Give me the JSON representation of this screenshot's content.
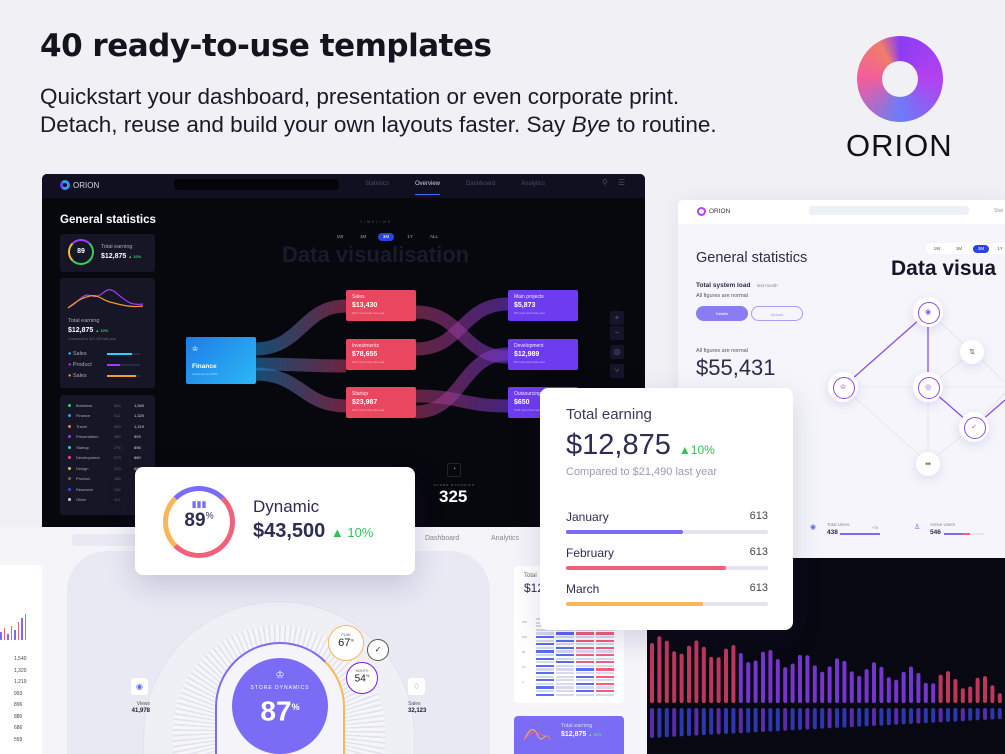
{
  "headline": {
    "title": "40 ready-to-use templates",
    "line1": "Quickstart your dashboard, presentation or even corporate print.",
    "line2_pre": "Detach, reuse and build your own layouts faster. Say ",
    "line2_em": "Bye",
    "line2_post": " to routine."
  },
  "brand": {
    "name": "ORION"
  },
  "dark_dashboard": {
    "logo": "ORION",
    "tabs": [
      "Statistics",
      "Overview",
      "Dashboard",
      "Analytics"
    ],
    "active_tab": "Overview",
    "heading": "General statistics",
    "gauge_card": {
      "percent": "89",
      "pct_sign": "%",
      "label": "Total earning",
      "value": "$12,875",
      "delta": "▲ 10%"
    },
    "earning_card": {
      "label": "Total earning",
      "value": "$12,875",
      "delta": "▲ 10%",
      "compare": "Compared to $21,490 last year",
      "legend": [
        "Sales",
        "Product",
        "Sales"
      ]
    },
    "table": [
      {
        "name": "Business",
        "a": "324",
        "b": "1,540",
        "color": "#2fd35a"
      },
      {
        "name": "Finance",
        "a": "311",
        "b": "1,320",
        "color": "#2d9cf5"
      },
      {
        "name": "Travel",
        "a": "300",
        "b": "1,219",
        "color": "#f57c2d"
      },
      {
        "name": "Presentation",
        "a": "289",
        "b": "993",
        "color": "#8b3df5"
      },
      {
        "name": "Startup",
        "a": "276",
        "b": "896",
        "color": "#2fd3a0"
      },
      {
        "name": "Development",
        "a": "273",
        "b": "880",
        "color": "#f03da0"
      },
      {
        "name": "Design",
        "a": "223",
        "b": "686",
        "color": "#d3c32f"
      },
      {
        "name": "Product",
        "a": "185",
        "b": "",
        "color": "#666"
      },
      {
        "name": "Research",
        "a": "132",
        "b": "",
        "color": "#2d4bf5"
      },
      {
        "name": "Other",
        "a": "107",
        "b": "",
        "color": "#ccc"
      }
    ],
    "timeline_label": "TIMELINE",
    "periods": [
      "1W",
      "1M",
      "3M",
      "1Y",
      "ALL"
    ],
    "active_period": "3M",
    "big_title": "Data visualisation",
    "source": {
      "name": "Finance",
      "desc": "Increased by 200%"
    },
    "middle": [
      {
        "name": "Sales",
        "value": "$13,430",
        "desc": "20% more than last year"
      },
      {
        "name": "Investments",
        "value": "$78,655",
        "desc": "10% more than last year"
      },
      {
        "name": "Startup",
        "value": "$23,987",
        "desc": "10% more than last year"
      }
    ],
    "right": [
      {
        "name": "Main projects",
        "value": "$5,873",
        "desc": "2% more than last year"
      },
      {
        "name": "Development",
        "value": "$12,989",
        "desc": "5% more than last year"
      },
      {
        "name": "Outsourcing",
        "value": "$650",
        "desc": "12% more than last year"
      }
    ],
    "store": {
      "label": "STORE DYNAMICS",
      "value": "325"
    }
  },
  "light_dashboard": {
    "logo": "ORION",
    "tab_partial": "Stat",
    "heading": "General statistics",
    "load_label": "Total system load",
    "load_period": "last month",
    "load_note": "All figures are normal",
    "details_btn": "Details",
    "upload_btn": "Upload",
    "amount_note": "All figures are normal",
    "amount": "$55,431",
    "periods": [
      "1W",
      "1M",
      "3M",
      "1Y"
    ],
    "active_period": "3M",
    "big_title": "Data visua",
    "total_users": {
      "label": "Total Users",
      "value": "438",
      "delta": "+76"
    },
    "active_users": {
      "label": "Active Users",
      "value": "546"
    }
  },
  "bottom_dashboard": {
    "tabs": [
      "Dashboard",
      "Analytics"
    ],
    "numbers": [
      "1,540",
      "1,320",
      "1,219",
      "993",
      "896",
      "880",
      "686",
      "559"
    ],
    "store": {
      "label": "STORE DYNAMICS",
      "value": "87",
      "pct": "%"
    },
    "plan": {
      "label": "PLAN",
      "value": "67",
      "pct": "%"
    },
    "month": {
      "label": "MONTH",
      "value": "54",
      "pct": "%"
    },
    "views": {
      "label": "Views",
      "value": "41,978"
    },
    "sales": {
      "label": "Sales",
      "value": "32,123"
    },
    "side_total": {
      "label": "Total",
      "value": "$12"
    },
    "heat_ticks": [
      "150",
      "100",
      "50",
      "10",
      "0"
    ],
    "mini_card": {
      "label": "Total earning",
      "value": "$12,875",
      "delta": "▲ 10%"
    }
  },
  "total_earning_card": {
    "title": "Total earning",
    "value": "$12,875",
    "delta": "10%",
    "compare": "Compared to $21,490 last year",
    "months": [
      {
        "name": "January",
        "value": "613",
        "fill": 0.58,
        "color": "#7b6cf6"
      },
      {
        "name": "February",
        "value": "613",
        "fill": 0.79,
        "color": "#f2607a"
      },
      {
        "name": "March",
        "value": "613",
        "fill": 0.68,
        "color": "#fbb55a"
      }
    ]
  },
  "dynamic_card": {
    "percent": "89",
    "pct_sign": "%",
    "title": "Dynamic",
    "value": "$43,500",
    "delta": "10%"
  },
  "colors": {
    "accent": "#7b6cf6",
    "positive": "#2fc25a",
    "pink": "#f2607a",
    "orange": "#fbb55a",
    "dark_bg": "#07070e"
  }
}
